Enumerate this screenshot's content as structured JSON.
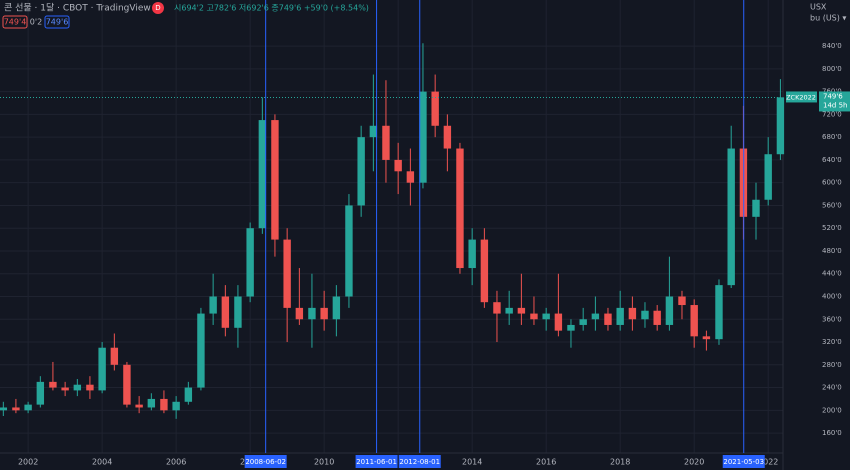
{
  "header": {
    "title": "콘 선물 · 1달 · CBOT · TradingView",
    "badge": "D",
    "ohlc": "시694'2 고782'6 저692'6 종749'6 +59'0 (+8.54%)",
    "bid": "749'4",
    "spread": "0'2",
    "ask": "749'6",
    "unit": "USX",
    "unit_menu": "bu (US) ▾"
  },
  "chart_data": {
    "type": "candlestick",
    "x": [
      2001.33,
      2001.67,
      2002,
      2002.33,
      2002.67,
      2003,
      2003.33,
      2003.67,
      2004,
      2004.33,
      2004.67,
      2005,
      2005.33,
      2005.67,
      2006,
      2006.33,
      2006.67,
      2007,
      2007.33,
      2007.67,
      2008,
      2008.33,
      2008.67,
      2009,
      2009.33,
      2009.67,
      2010,
      2010.33,
      2010.67,
      2011,
      2011.33,
      2011.67,
      2012,
      2012.33,
      2012.67,
      2013,
      2013.33,
      2013.67,
      2014,
      2014.33,
      2014.67,
      2015,
      2015.33,
      2015.67,
      2016,
      2016.33,
      2016.67,
      2017,
      2017.33,
      2017.67,
      2018,
      2018.33,
      2018.67,
      2019,
      2019.33,
      2019.67,
      2020,
      2020.33,
      2020.67,
      2021,
      2021.33,
      2021.67,
      2022,
      2022.33
    ],
    "open": [
      200,
      205,
      200,
      210,
      250,
      240,
      235,
      245,
      235,
      310,
      280,
      210,
      205,
      220,
      200,
      215,
      240,
      370,
      400,
      345,
      400,
      520,
      710,
      500,
      380,
      360,
      380,
      360,
      400,
      560,
      680,
      700,
      640,
      620,
      600,
      760,
      700,
      660,
      450,
      500,
      390,
      370,
      380,
      370,
      360,
      370,
      340,
      350,
      360,
      370,
      350,
      380,
      360,
      375,
      350,
      400,
      385,
      330,
      325,
      420,
      660,
      540,
      570,
      650
    ],
    "high": [
      215,
      220,
      215,
      260,
      285,
      250,
      255,
      260,
      320,
      335,
      285,
      225,
      230,
      235,
      225,
      250,
      380,
      440,
      420,
      420,
      530,
      750,
      720,
      520,
      450,
      440,
      410,
      420,
      580,
      700,
      790,
      780,
      670,
      660,
      845,
      790,
      720,
      670,
      520,
      520,
      410,
      410,
      440,
      400,
      380,
      440,
      360,
      380,
      400,
      380,
      410,
      400,
      390,
      385,
      470,
      410,
      395,
      340,
      430,
      700,
      735,
      600,
      680,
      782
    ],
    "low": [
      190,
      195,
      195,
      205,
      235,
      225,
      225,
      220,
      230,
      270,
      205,
      195,
      200,
      195,
      185,
      210,
      235,
      350,
      330,
      310,
      390,
      510,
      470,
      320,
      350,
      310,
      340,
      330,
      380,
      540,
      620,
      600,
      580,
      560,
      590,
      680,
      620,
      440,
      420,
      380,
      320,
      350,
      350,
      350,
      340,
      330,
      310,
      340,
      340,
      340,
      340,
      340,
      345,
      340,
      340,
      360,
      310,
      305,
      315,
      415,
      500,
      500,
      560,
      640
    ],
    "close": [
      205,
      200,
      210,
      250,
      240,
      235,
      245,
      235,
      310,
      280,
      210,
      205,
      220,
      200,
      215,
      240,
      370,
      400,
      345,
      400,
      520,
      710,
      500,
      380,
      360,
      380,
      360,
      400,
      560,
      680,
      700,
      640,
      620,
      600,
      760,
      700,
      660,
      450,
      500,
      390,
      370,
      380,
      370,
      360,
      370,
      340,
      350,
      360,
      370,
      350,
      380,
      360,
      375,
      350,
      400,
      385,
      330,
      325,
      420,
      660,
      540,
      570,
      650,
      750
    ],
    "xlim": [
      2001.24,
      2022.4
    ],
    "ylim": [
      125,
      921
    ],
    "xticks": [
      2002,
      2004,
      2006,
      2008,
      2010,
      2012,
      2014,
      2016,
      2018,
      2020,
      2022
    ],
    "yticks": [
      {
        "value": 160,
        "label": "160'0"
      },
      {
        "value": 200,
        "label": "200'0"
      },
      {
        "value": 240,
        "label": "240'0"
      },
      {
        "value": 280,
        "label": "280'0"
      },
      {
        "value": 320,
        "label": "320'0"
      },
      {
        "value": 360,
        "label": "360'0"
      },
      {
        "value": 400,
        "label": "400'0"
      },
      {
        "value": 440,
        "label": "440'0"
      },
      {
        "value": 480,
        "label": "480'0"
      },
      {
        "value": 520,
        "label": "520'0"
      },
      {
        "value": 560,
        "label": "560'0"
      },
      {
        "value": 600,
        "label": "600'0"
      },
      {
        "value": 640,
        "label": "640'0"
      },
      {
        "value": 680,
        "label": "680'0"
      },
      {
        "value": 720,
        "label": "720'0"
      },
      {
        "value": 760,
        "label": "760'0"
      },
      {
        "value": 800,
        "label": "800'0"
      },
      {
        "value": 840,
        "label": "840'0"
      }
    ],
    "up_color": "#26a69a",
    "down_color": "#ef5350",
    "grid": true,
    "markers": [
      "2008-06-02",
      "2011-06-01",
      "2012-08-01",
      "2021-05-03"
    ],
    "last_price": {
      "value": 749.75,
      "label": "749'6",
      "symbol": "ZCK2022",
      "countdown": "14d 5h"
    }
  }
}
